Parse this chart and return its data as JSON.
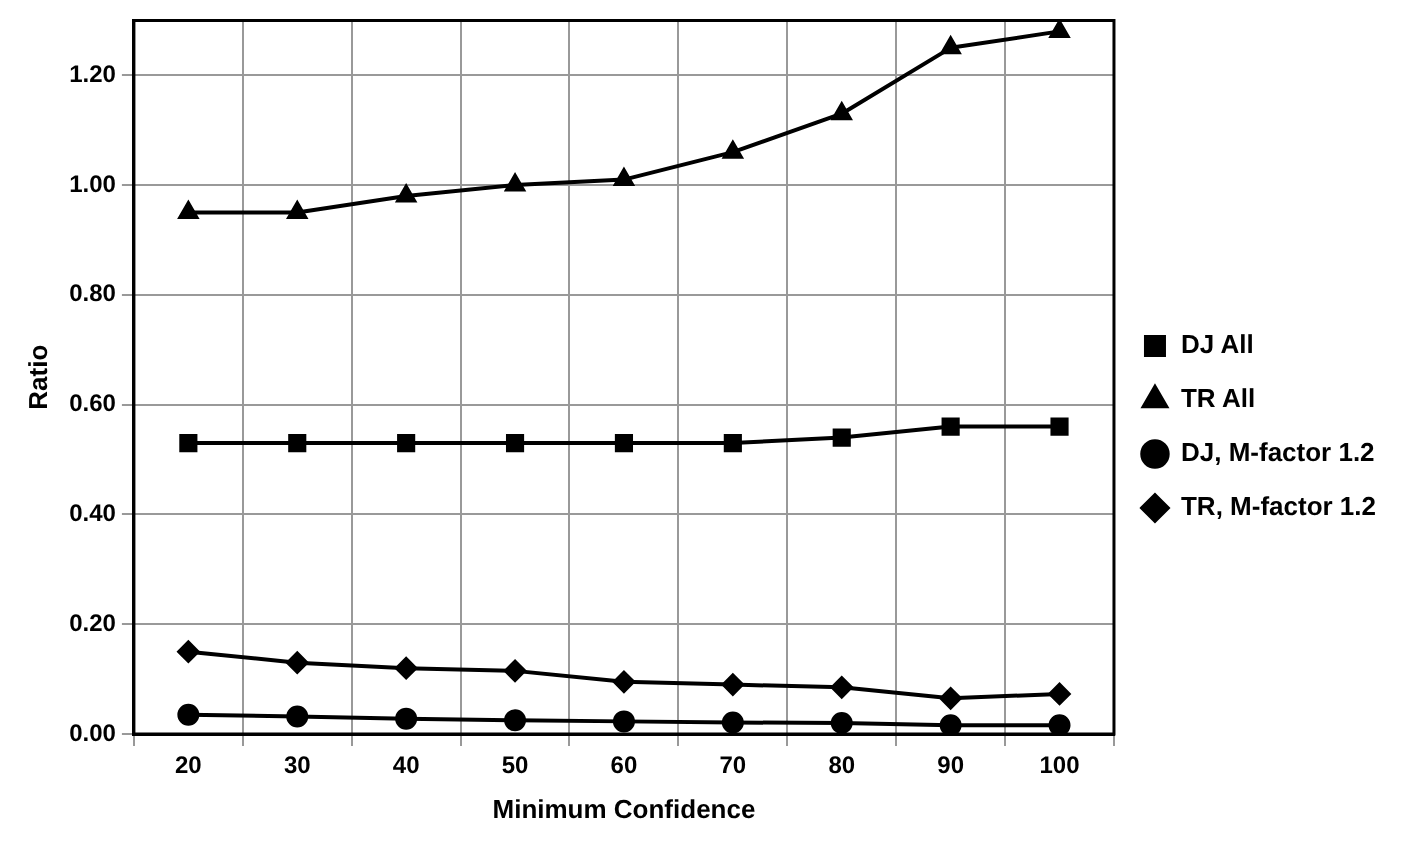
{
  "chart_data": {
    "type": "line",
    "xlabel": "Minimum Confidence",
    "ylabel": "Ratio",
    "categories": [
      "20",
      "30",
      "40",
      "50",
      "60",
      "70",
      "80",
      "90",
      "100"
    ],
    "series": [
      {
        "name": "DJ All",
        "color": "#000000",
        "marker": "square",
        "values": [
          0.53,
          0.53,
          0.53,
          0.53,
          0.53,
          0.53,
          0.54,
          0.56,
          0.56
        ]
      },
      {
        "name": "TR All",
        "color": "#000000",
        "marker": "triangle",
        "values": [
          0.95,
          0.95,
          0.98,
          1.0,
          1.01,
          1.06,
          1.13,
          1.25,
          1.28
        ]
      },
      {
        "name": "DJ, M-factor 1.2",
        "color": "#000000",
        "marker": "circle",
        "values": [
          0.035,
          0.032,
          0.028,
          0.025,
          0.023,
          0.021,
          0.02,
          0.016,
          0.016
        ]
      },
      {
        "name": "TR, M-factor 1.2",
        "color": "#000000",
        "marker": "diamond",
        "values": [
          0.15,
          0.13,
          0.12,
          0.115,
          0.095,
          0.09,
          0.085,
          0.065,
          0.073
        ]
      }
    ],
    "ylim": [
      0,
      1.3
    ],
    "yticks": [
      {
        "value": 0,
        "label": "0.00"
      },
      {
        "value": 0.2,
        "label": "0.20"
      },
      {
        "value": 0.4,
        "label": "0.40"
      },
      {
        "value": 0.6,
        "label": "0.60"
      },
      {
        "value": 0.8,
        "label": "0.80"
      },
      {
        "value": 1.0,
        "label": "1.00"
      },
      {
        "value": 1.2,
        "label": "1.20"
      }
    ],
    "grid": true,
    "legend": "right",
    "line_style": "solid"
  }
}
